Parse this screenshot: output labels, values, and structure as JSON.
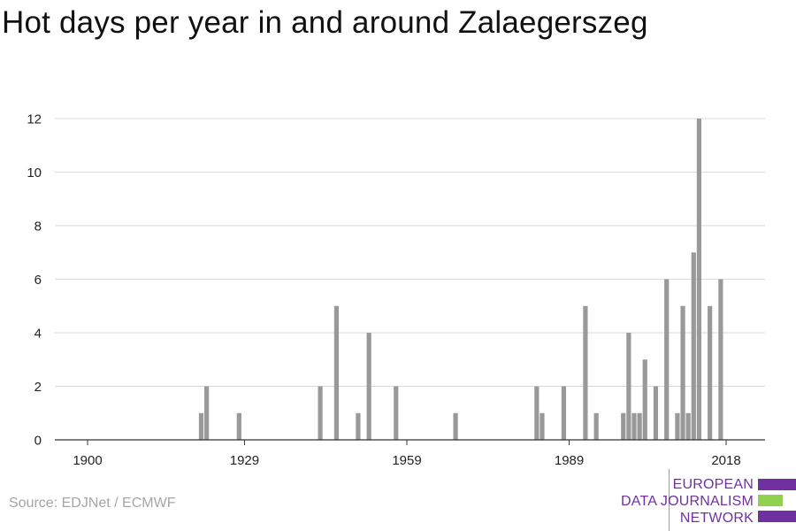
{
  "title": "Hot days per year in and around Zalaegerszeg",
  "source": "Source: EDJNet / ECMWF",
  "logo": {
    "lines": [
      "EUROPEAN",
      "DATA JOURNALISM",
      "NETWORK"
    ],
    "colors": {
      "purple": "#7030a0",
      "green": "#92d050"
    }
  },
  "colors": {
    "bar": "#999999",
    "grid": "#d9d9d9",
    "axis": "#333333"
  },
  "chart_data": {
    "type": "bar",
    "title": "Hot days per year in and around Zalaegerszeg",
    "xlabel": "",
    "ylabel": "",
    "xlim": [
      1900,
      2018
    ],
    "ylim": [
      0,
      12
    ],
    "xticks": [
      1900,
      1929,
      1959,
      1989,
      2018
    ],
    "yticks": [
      0,
      2,
      4,
      6,
      8,
      10,
      12
    ],
    "grid": true,
    "x": [
      1921,
      1922,
      1928,
      1943,
      1946,
      1950,
      1952,
      1957,
      1968,
      1983,
      1984,
      1988,
      1992,
      1994,
      1999,
      2000,
      2001,
      2002,
      2003,
      2005,
      2007,
      2009,
      2010,
      2011,
      2012,
      2013,
      2015,
      2017
    ],
    "values": [
      1,
      2,
      1,
      2,
      5,
      1,
      4,
      2,
      1,
      2,
      1,
      2,
      5,
      1,
      1,
      4,
      1,
      1,
      3,
      2,
      6,
      1,
      5,
      1,
      7,
      12,
      5,
      6
    ]
  }
}
